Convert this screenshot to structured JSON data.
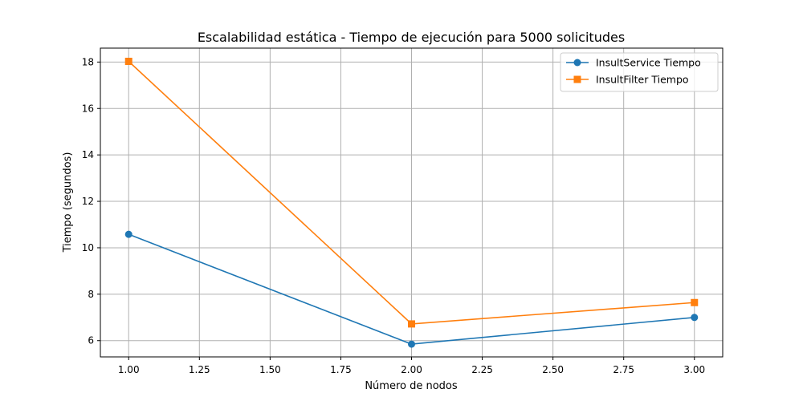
{
  "chart_data": {
    "type": "line",
    "title": "Escalabilidad estática - Tiempo de ejecución para 5000 solicitudes",
    "xlabel": "Número de nodos",
    "ylabel": "Tiempo (segundos)",
    "xlim": [
      0.9,
      3.1
    ],
    "ylim": [
      5.3,
      18.6
    ],
    "xticks": [
      1.0,
      1.25,
      1.5,
      1.75,
      2.0,
      2.25,
      2.5,
      2.75,
      3.0
    ],
    "xtick_labels": [
      "1.00",
      "1.25",
      "1.50",
      "1.75",
      "2.00",
      "2.25",
      "2.50",
      "2.75",
      "3.00"
    ],
    "yticks": [
      6,
      8,
      10,
      12,
      14,
      16,
      18
    ],
    "ytick_labels": [
      "6",
      "8",
      "10",
      "12",
      "14",
      "16",
      "18"
    ],
    "grid": true,
    "legend_position": "top-right",
    "x": [
      1,
      2,
      3
    ],
    "series": [
      {
        "name": "InsultService Tiempo",
        "values": [
          10.58,
          5.85,
          7.0
        ],
        "color": "#1f77b4",
        "marker": "circle"
      },
      {
        "name": "InsultFilter Tiempo",
        "values": [
          18.03,
          6.72,
          7.64
        ],
        "color": "#ff7f0e",
        "marker": "square"
      }
    ]
  }
}
